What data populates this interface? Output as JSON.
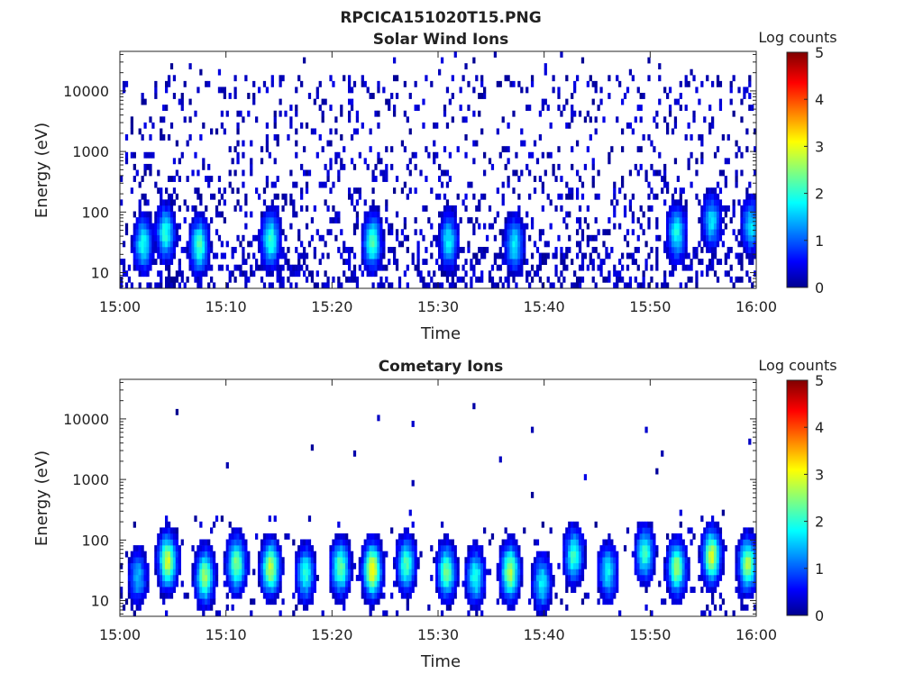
{
  "figure": {
    "title": "RPCICA151020T15.PNG"
  },
  "chart_data": [
    {
      "type": "heatmap",
      "title": "Solar Wind Ions",
      "xlabel": "Time",
      "ylabel": "Energy (eV)",
      "x_ticks": [
        "15:00",
        "15:10",
        "15:20",
        "15:30",
        "15:40",
        "15:50",
        "16:00"
      ],
      "x_range": [
        "15:00",
        "16:00"
      ],
      "y_scale": "log",
      "y_ticks": [
        10,
        100,
        1000,
        10000
      ],
      "y_tick_labels": [
        "10",
        "100",
        "1000",
        "10000"
      ],
      "y_range_eV": [
        5.5,
        45000
      ],
      "colorbar": {
        "label": "Log counts",
        "range": [
          0,
          5
        ],
        "ticks": [
          "0",
          "1",
          "2",
          "3",
          "4",
          "5"
        ],
        "colormap": "jet"
      },
      "peak_events": [
        {
          "time_min": 2.2,
          "energy_eV": 30,
          "log_counts": 1.9
        },
        {
          "time_min": 4.3,
          "energy_eV": 45,
          "log_counts": 2.0
        },
        {
          "time_min": 7.5,
          "energy_eV": 28,
          "log_counts": 2.2
        },
        {
          "time_min": 14.2,
          "energy_eV": 35,
          "log_counts": 2.1
        },
        {
          "time_min": 23.8,
          "energy_eV": 32,
          "log_counts": 2.2
        },
        {
          "time_min": 31.0,
          "energy_eV": 33,
          "log_counts": 1.8
        },
        {
          "time_min": 37.2,
          "energy_eV": 30,
          "log_counts": 1.8
        },
        {
          "time_min": 52.5,
          "energy_eV": 45,
          "log_counts": 1.9
        },
        {
          "time_min": 55.8,
          "energy_eV": 70,
          "log_counts": 1.7
        },
        {
          "time_min": 59.5,
          "energy_eV": 60,
          "log_counts": 1.7
        }
      ],
      "background": "sparse counts (log counts ~0–0.5) scattered from 6 eV to ~30000 eV"
    },
    {
      "type": "heatmap",
      "title": "Cometary Ions",
      "xlabel": "Time",
      "ylabel": "Energy (eV)",
      "x_ticks": [
        "15:00",
        "15:10",
        "15:20",
        "15:30",
        "15:40",
        "15:50",
        "16:00"
      ],
      "x_range": [
        "15:00",
        "16:00"
      ],
      "y_scale": "log",
      "y_ticks": [
        10,
        100,
        1000,
        10000
      ],
      "y_tick_labels": [
        "10",
        "100",
        "1000",
        "10000"
      ],
      "y_range_eV": [
        5.5,
        45000
      ],
      "colorbar": {
        "label": "Log counts",
        "range": [
          0,
          5
        ],
        "ticks": [
          "0",
          "1",
          "2",
          "3",
          "4",
          "5"
        ],
        "colormap": "jet"
      },
      "peak_events": [
        {
          "time_min": 1.7,
          "energy_eV": 25,
          "log_counts": 1.5
        },
        {
          "time_min": 4.5,
          "energy_eV": 45,
          "log_counts": 2.9
        },
        {
          "time_min": 8.0,
          "energy_eV": 25,
          "log_counts": 2.6
        },
        {
          "time_min": 11.0,
          "energy_eV": 40,
          "log_counts": 2.5
        },
        {
          "time_min": 14.2,
          "energy_eV": 35,
          "log_counts": 2.8
        },
        {
          "time_min": 17.5,
          "energy_eV": 28,
          "log_counts": 2.0
        },
        {
          "time_min": 20.8,
          "energy_eV": 35,
          "log_counts": 2.4
        },
        {
          "time_min": 23.8,
          "energy_eV": 32,
          "log_counts": 3.2
        },
        {
          "time_min": 27.0,
          "energy_eV": 40,
          "log_counts": 2.2
        },
        {
          "time_min": 30.8,
          "energy_eV": 30,
          "log_counts": 2.4
        },
        {
          "time_min": 33.5,
          "energy_eV": 25,
          "log_counts": 2.0
        },
        {
          "time_min": 36.8,
          "energy_eV": 30,
          "log_counts": 2.8
        },
        {
          "time_min": 39.8,
          "energy_eV": 20,
          "log_counts": 1.8
        },
        {
          "time_min": 42.8,
          "energy_eV": 55,
          "log_counts": 2.1
        },
        {
          "time_min": 46.0,
          "energy_eV": 30,
          "log_counts": 1.8
        },
        {
          "time_min": 49.5,
          "energy_eV": 60,
          "log_counts": 2.1
        },
        {
          "time_min": 52.5,
          "energy_eV": 35,
          "log_counts": 2.6
        },
        {
          "time_min": 55.8,
          "energy_eV": 55,
          "log_counts": 2.9
        },
        {
          "time_min": 59.2,
          "energy_eV": 40,
          "log_counts": 2.7
        }
      ],
      "background": "few scattered counts (log counts ~0–0.5) above 100 eV up to ~20000 eV"
    }
  ]
}
